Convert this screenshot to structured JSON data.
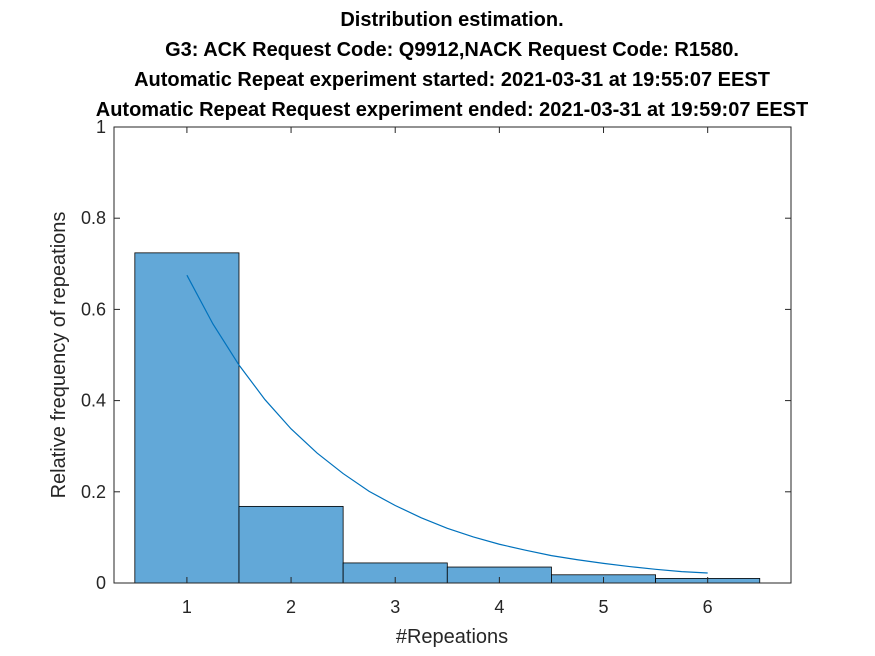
{
  "chart_data": {
    "type": "bar",
    "title_lines": [
      "Distribution estimation.",
      "G3: ACK Request Code: Q9912,NACK Request Code: R1580.",
      "Automatic Repeat experiment started: 2021-03-31 at 19:55:07 EEST",
      "Automatic Repeat Request experiment ended: 2021-03-31 at 19:59:07 EEST"
    ],
    "xlabel": "#Repeations",
    "ylabel": "Relative frequency of repeations",
    "xlim": [
      0.3,
      6.8
    ],
    "ylim": [
      0,
      1
    ],
    "x_ticks": [
      "1",
      "2",
      "3",
      "4",
      "5",
      "6"
    ],
    "y_ticks": [
      "0",
      "0.2",
      "0.4",
      "0.6",
      "0.8",
      "1"
    ],
    "grid": false,
    "bar_color": "#62a8d8",
    "line_color": "#0072bd",
    "bars": [
      {
        "x": 1,
        "value": 0.724
      },
      {
        "x": 2,
        "value": 0.168
      },
      {
        "x": 3,
        "value": 0.044
      },
      {
        "x": 4,
        "value": 0.035
      },
      {
        "x": 5,
        "value": 0.018
      },
      {
        "x": 6,
        "value": 0.01
      }
    ],
    "fit_curve": {
      "x": [
        1,
        1.25,
        1.5,
        1.75,
        2,
        2.25,
        2.5,
        2.75,
        3,
        3.25,
        3.5,
        3.75,
        4,
        4.25,
        4.5,
        4.75,
        5,
        5.25,
        5.5,
        5.75,
        6
      ],
      "y": [
        0.675,
        0.568,
        0.478,
        0.402,
        0.338,
        0.285,
        0.24,
        0.201,
        0.17,
        0.143,
        0.12,
        0.101,
        0.085,
        0.072,
        0.06,
        0.051,
        0.043,
        0.036,
        0.03,
        0.025,
        0.022
      ]
    }
  }
}
